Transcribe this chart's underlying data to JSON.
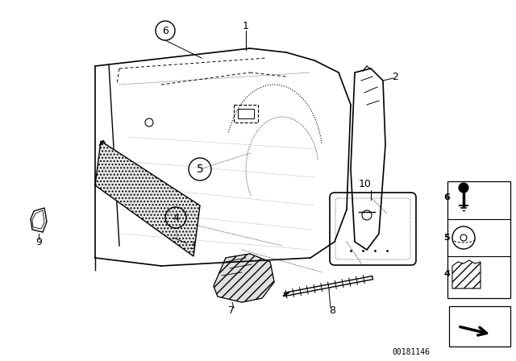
{
  "bg_color": "#ffffff",
  "diagram_number": "00181146",
  "fig_width": 6.4,
  "fig_height": 4.48,
  "dpi": 100
}
